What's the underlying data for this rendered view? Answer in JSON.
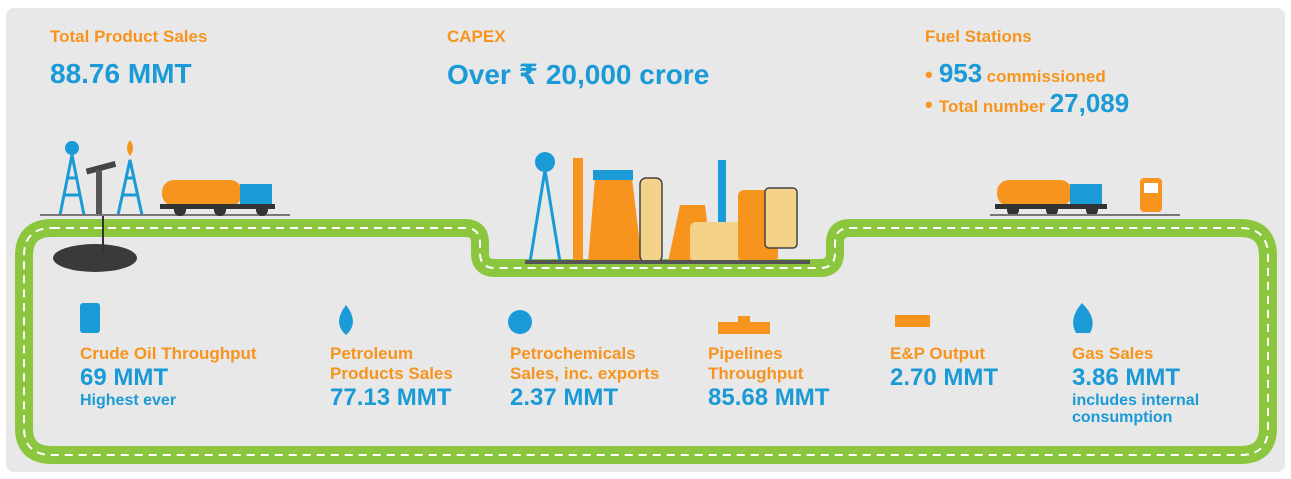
{
  "top": [
    {
      "heading": "Total Product Sales",
      "value": "88.76 MMT"
    },
    {
      "heading": "CAPEX",
      "value": "Over ₹ 20,000 crore"
    },
    {
      "heading": "Fuel Stations",
      "items": [
        {
          "value": "953",
          "label": "commissioned"
        },
        {
          "label": "Total number",
          "value": "27,089"
        }
      ]
    }
  ],
  "metrics": [
    {
      "label": [
        "Crude Oil Throughput"
      ],
      "value": "69 MMT",
      "note": [
        "Highest ever"
      ]
    },
    {
      "label": [
        "Petroleum",
        "Products Sales"
      ],
      "value": "77.13 MMT"
    },
    {
      "label": [
        "Petrochemicals",
        "Sales, inc. exports"
      ],
      "value": "2.37 MMT"
    },
    {
      "label": [
        "Pipelines",
        "Throughput"
      ],
      "value": "85.68 MMT"
    },
    {
      "label": [
        "E&P Output"
      ],
      "value": "2.70 MMT"
    },
    {
      "label": [
        "Gas Sales"
      ],
      "value": "3.86 MMT",
      "note": [
        "includes internal",
        "consumption"
      ]
    }
  ]
}
